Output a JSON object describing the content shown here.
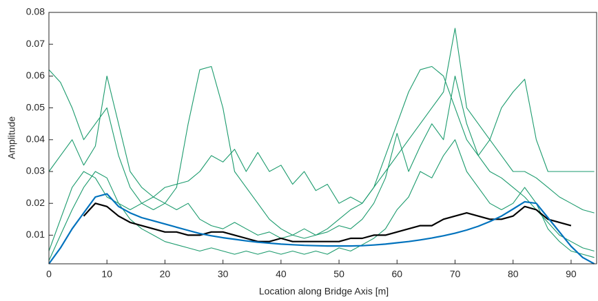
{
  "chart_data": {
    "type": "line",
    "xlabel": "Location along Bridge Axis [m]",
    "ylabel": "Amplitude",
    "x": [
      0,
      2,
      4,
      6,
      8,
      10,
      12,
      14,
      16,
      18,
      20,
      22,
      24,
      26,
      28,
      30,
      32,
      34,
      36,
      38,
      40,
      42,
      44,
      46,
      48,
      50,
      52,
      54,
      56,
      58,
      60,
      62,
      64,
      66,
      68,
      70,
      72,
      74,
      76,
      78,
      80,
      82,
      84,
      86,
      88,
      90,
      92,
      94
    ],
    "xlim": [
      0,
      94.4
    ],
    "xticks": [
      0,
      10,
      20,
      30,
      40,
      50,
      60,
      70,
      80,
      90
    ],
    "ylim": [
      0.001,
      0.08
    ],
    "yticks": [
      0.01,
      0.02,
      0.03,
      0.04,
      0.05,
      0.06,
      0.07,
      0.08
    ],
    "series": [
      {
        "color": "#1a9a6c",
        "values": [
          0.062,
          0.058,
          0.05,
          0.04,
          0.045,
          0.05,
          0.035,
          0.025,
          0.02,
          0.018,
          0.02,
          0.025,
          0.045,
          0.062,
          0.063,
          0.05,
          0.03,
          0.025,
          0.02,
          0.015,
          0.012,
          0.01,
          0.009,
          0.01,
          0.012,
          0.015,
          0.018,
          0.02,
          0.025,
          0.035,
          0.045,
          0.055,
          0.062,
          0.063,
          0.06,
          0.05,
          0.04,
          0.035,
          0.04,
          0.05,
          0.055,
          0.059,
          0.04,
          0.03,
          0.03,
          0.03,
          0.03,
          0.03
        ]
      },
      {
        "color": "#1a9a6c",
        "values": [
          0.005,
          0.015,
          0.025,
          0.03,
          0.028,
          0.022,
          0.02,
          0.018,
          0.02,
          0.022,
          0.025,
          0.026,
          0.027,
          0.03,
          0.035,
          0.033,
          0.037,
          0.03,
          0.036,
          0.03,
          0.032,
          0.026,
          0.03,
          0.024,
          0.026,
          0.02,
          0.022,
          0.02,
          0.025,
          0.03,
          0.035,
          0.04,
          0.045,
          0.05,
          0.055,
          0.075,
          0.05,
          0.045,
          0.04,
          0.035,
          0.03,
          0.03,
          0.028,
          0.025,
          0.022,
          0.02,
          0.018,
          0.017
        ]
      },
      {
        "color": "#1a9a6c",
        "values": [
          0.002,
          0.01,
          0.018,
          0.025,
          0.03,
          0.028,
          0.02,
          0.015,
          0.012,
          0.01,
          0.008,
          0.007,
          0.006,
          0.005,
          0.006,
          0.005,
          0.004,
          0.005,
          0.004,
          0.005,
          0.004,
          0.005,
          0.004,
          0.005,
          0.004,
          0.006,
          0.005,
          0.007,
          0.009,
          0.012,
          0.018,
          0.022,
          0.03,
          0.028,
          0.035,
          0.04,
          0.03,
          0.025,
          0.02,
          0.018,
          0.02,
          0.025,
          0.02,
          0.012,
          0.008,
          0.005,
          0.004,
          0.003
        ]
      },
      {
        "color": "#1a9a6c",
        "values": [
          0.03,
          0.035,
          0.04,
          0.032,
          0.038,
          0.06,
          0.045,
          0.03,
          0.025,
          0.022,
          0.02,
          0.018,
          0.02,
          0.015,
          0.013,
          0.012,
          0.014,
          0.012,
          0.01,
          0.011,
          0.009,
          0.01,
          0.012,
          0.01,
          0.011,
          0.013,
          0.012,
          0.015,
          0.02,
          0.028,
          0.042,
          0.03,
          0.038,
          0.045,
          0.04,
          0.06,
          0.045,
          0.035,
          0.03,
          0.028,
          0.025,
          0.022,
          0.018,
          0.014,
          0.01,
          0.008,
          0.006,
          0.005
        ]
      },
      {
        "color": "#000000",
        "values": [
          null,
          null,
          null,
          0.016,
          0.02,
          0.019,
          0.016,
          0.014,
          0.013,
          0.012,
          0.011,
          0.011,
          0.01,
          0.01,
          0.011,
          0.011,
          0.01,
          0.009,
          0.008,
          0.008,
          0.009,
          0.008,
          0.008,
          0.008,
          0.008,
          0.008,
          0.009,
          0.009,
          0.01,
          0.01,
          0.011,
          0.012,
          0.013,
          0.013,
          0.015,
          0.016,
          0.017,
          0.016,
          0.015,
          0.015,
          0.016,
          0.019,
          0.018,
          0.015,
          0.014,
          0.013,
          null,
          null
        ]
      },
      {
        "color": "#0072bd",
        "values": [
          0.001,
          0.006,
          0.012,
          0.017,
          0.022,
          0.023,
          0.019,
          0.017,
          0.0155,
          0.0145,
          0.0135,
          0.0125,
          0.0115,
          0.0105,
          0.0098,
          0.0092,
          0.0087,
          0.0082,
          0.0078,
          0.0075,
          0.0072,
          0.007,
          0.0068,
          0.0067,
          0.0066,
          0.0066,
          0.0066,
          0.0067,
          0.0069,
          0.0072,
          0.0076,
          0.008,
          0.0085,
          0.0091,
          0.0098,
          0.0106,
          0.0116,
          0.0128,
          0.0143,
          0.016,
          0.0182,
          0.0205,
          0.02,
          0.0155,
          0.011,
          0.0065,
          0.003,
          0.001
        ]
      }
    ]
  }
}
